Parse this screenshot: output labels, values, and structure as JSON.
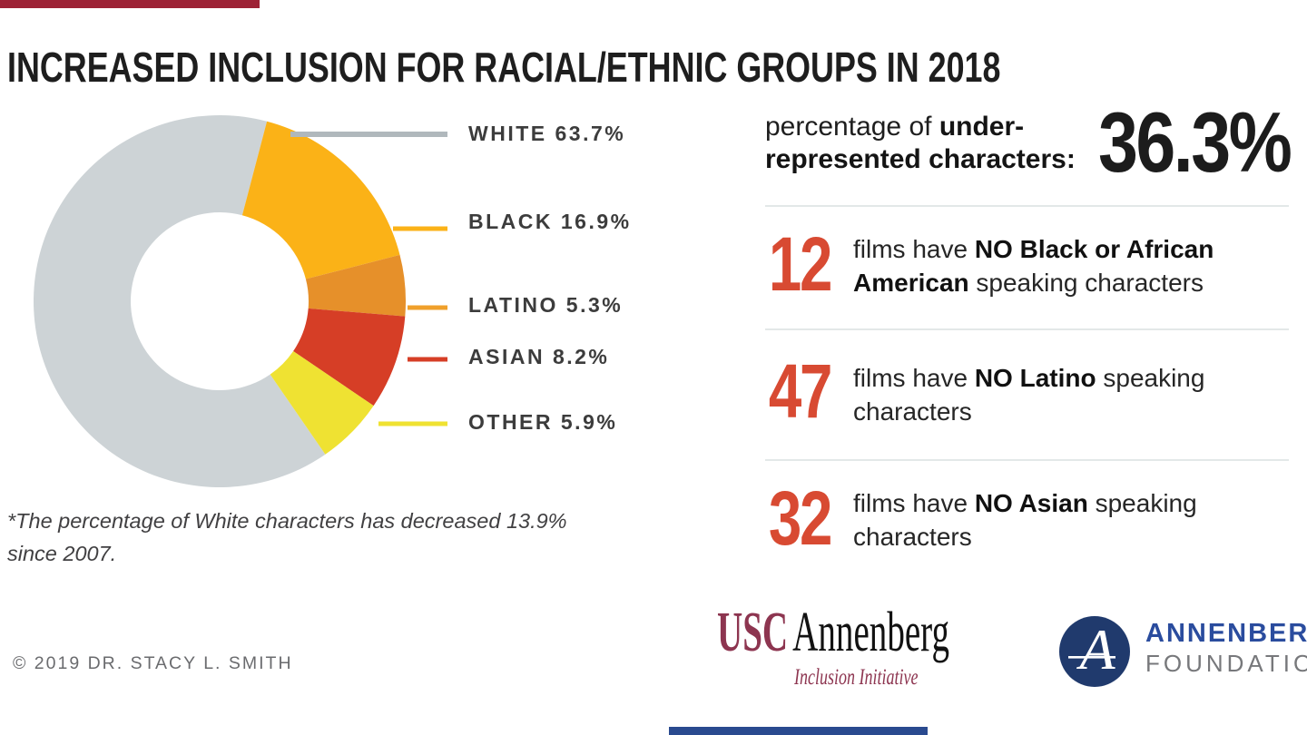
{
  "page": {
    "title": "INCREASED INCLUSION FOR RACIAL/ETHNIC GROUPS IN 2018",
    "footnote": "*The percentage of White characters has decreased 13.9% since 2007.",
    "copyright": "© 2019 DR. STACY L. SMITH",
    "accent_bars": {
      "top_color": "#9D2235",
      "bottom_color": "#2A4A8F"
    }
  },
  "chart_data": {
    "type": "pie",
    "subtype": "donut",
    "title": "INCREASED INCLUSION FOR RACIAL/ETHNIC GROUPS IN 2018",
    "start_angle_deg": 145.4,
    "legend_position": "right",
    "segments": [
      {
        "label": "WHITE",
        "value": 63.7,
        "display": "WHITE 63.7%",
        "color": "#CDD3D6",
        "line_color": "#B0B8BC"
      },
      {
        "label": "BLACK",
        "value": 16.9,
        "display": "BLACK 16.9%",
        "color": "#FBB217",
        "line_color": "#FBB217"
      },
      {
        "label": "LATINO",
        "value": 5.3,
        "display": "LATINO 5.3%",
        "color": "#E6902A",
        "line_color": "#F0A02B"
      },
      {
        "label": "ASIAN",
        "value": 8.2,
        "display": "ASIAN 8.2%",
        "color": "#D63E26",
        "line_color": "#D63E26"
      },
      {
        "label": "OTHER",
        "value": 5.9,
        "display": "OTHER 5.9%",
        "color": "#EFE232",
        "line_color": "#EFE232"
      }
    ],
    "footnote": "*The percentage of White characters has decreased 13.9% since 2007."
  },
  "panel": {
    "intro_pre": "percentage of ",
    "intro_bold": "under-represented characters",
    "intro_colon": ":",
    "big_value": "36.3%",
    "number_color": "#D84A32",
    "rows": [
      {
        "number": "12",
        "pre": "films have ",
        "bold": "NO Black or African American",
        "post": " speaking characters"
      },
      {
        "number": "47",
        "pre": "films have ",
        "bold": "NO Latino",
        "post": " speaking characters"
      },
      {
        "number": "32",
        "pre": "films have ",
        "bold": "NO Asian",
        "post": " speaking characters"
      }
    ]
  },
  "logos": {
    "usc": {
      "usc": "USC",
      "annenberg": "Annenberg",
      "subtitle": "Inclusion Initiative",
      "maroon": "#8D3550"
    },
    "foundation": {
      "monogram": "A",
      "line1": "ANNENBERG",
      "line2": "FOUNDATION",
      "navy": "#203A6D",
      "blue": "#2A4C9E",
      "gray": "#77787B"
    }
  }
}
